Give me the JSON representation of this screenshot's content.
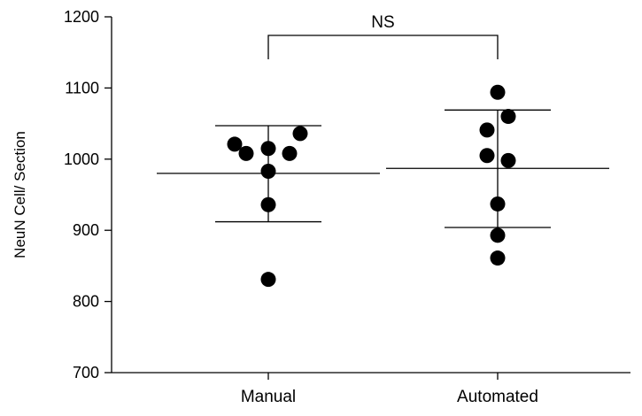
{
  "chart_data": {
    "type": "scatter",
    "ylabel": "NeuN Cell/ Section",
    "ylim": [
      700,
      1200
    ],
    "yticks": [
      "700",
      "800",
      "900",
      "1000",
      "1100",
      "1200"
    ],
    "categories": [
      "Manual",
      "Automated"
    ],
    "groups": [
      {
        "category": "Manual",
        "points": [
          1021,
          1008,
          1015,
          983,
          1008,
          1036,
          936,
          831
        ],
        "mean": 980,
        "sd_upper": 1047,
        "sd_lower": 912
      },
      {
        "category": "Automated",
        "points": [
          1094,
          1060,
          1041,
          1005,
          998,
          937,
          893,
          861
        ],
        "mean": 987,
        "sd_upper": 1069,
        "sd_lower": 904
      }
    ],
    "significance": {
      "label": "NS",
      "between": [
        "Manual",
        "Automated"
      ]
    },
    "grid": false,
    "legend": "none",
    "marker_color": "#000000"
  }
}
